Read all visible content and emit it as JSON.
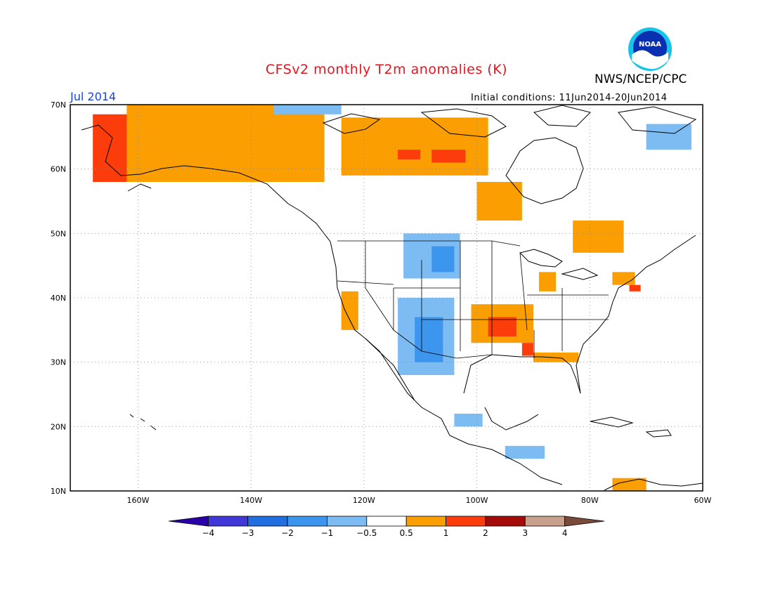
{
  "header": {
    "title": "CFSv2 monthly T2m anomalies (K)",
    "agency": "NWS/NCEP/CPC",
    "month": "Jul 2014",
    "initial_conditions": "Initial conditions: 11Jun2014-20Jun2014",
    "logo_text": "NOAA",
    "logo_icon": "noaa-logo-icon"
  },
  "map": {
    "lon_range": [
      -172,
      -60
    ],
    "lat_range": [
      10,
      70
    ],
    "lon_ticks": [
      "160W",
      "140W",
      "120W",
      "100W",
      "80W",
      "60W"
    ],
    "lon_tick_values": [
      -160,
      -140,
      -120,
      -100,
      -80,
      -60
    ],
    "lat_ticks": [
      "70N",
      "60N",
      "50N",
      "40N",
      "30N",
      "20N",
      "10N"
    ],
    "lat_tick_values": [
      70,
      60,
      50,
      40,
      30,
      20,
      10
    ],
    "grid": "dotted",
    "anomaly_regions": [
      {
        "level": "1",
        "lon": [
          -168,
          -148
        ],
        "lat": [
          58,
          68.5
        ]
      },
      {
        "level": "0.5",
        "lon": [
          -162,
          -127
        ],
        "lat": [
          58,
          70
        ]
      },
      {
        "level": "0.5",
        "lon": [
          -146,
          -134
        ],
        "lat": [
          59,
          70
        ]
      },
      {
        "level": "0.5",
        "lon": [
          -124,
          -98
        ],
        "lat": [
          59,
          68
        ]
      },
      {
        "level": "1",
        "lon": [
          -108,
          -102
        ],
        "lat": [
          61,
          63
        ]
      },
      {
        "level": "1",
        "lon": [
          -114,
          -110
        ],
        "lat": [
          61.5,
          63
        ]
      },
      {
        "level": "0.5",
        "lon": [
          -100,
          -92
        ],
        "lat": [
          52,
          58
        ]
      },
      {
        "level": "0.5",
        "lon": [
          -83,
          -74
        ],
        "lat": [
          47,
          52
        ]
      },
      {
        "level": "-0.5",
        "lon": [
          -113,
          -103
        ],
        "lat": [
          43,
          50
        ]
      },
      {
        "level": "-1",
        "lon": [
          -108,
          -104
        ],
        "lat": [
          44,
          48
        ]
      },
      {
        "level": "-0.5",
        "lon": [
          -114,
          -104
        ],
        "lat": [
          28,
          40
        ]
      },
      {
        "level": "-1",
        "lon": [
          -111,
          -106
        ],
        "lat": [
          30,
          37
        ]
      },
      {
        "level": "0.5",
        "lon": [
          -101,
          -90
        ],
        "lat": [
          33,
          39
        ]
      },
      {
        "level": "1",
        "lon": [
          -98,
          -93
        ],
        "lat": [
          34,
          37
        ]
      },
      {
        "level": "1",
        "lon": [
          -92,
          -90
        ],
        "lat": [
          31,
          33
        ]
      },
      {
        "level": "0.5",
        "lon": [
          -124,
          -121
        ],
        "lat": [
          35,
          41
        ]
      },
      {
        "level": "0.5",
        "lon": [
          -89,
          -86
        ],
        "lat": [
          41,
          44
        ]
      },
      {
        "level": "-0.5",
        "lon": [
          -104,
          -99
        ],
        "lat": [
          20,
          22
        ]
      },
      {
        "level": "-0.5",
        "lon": [
          -95,
          -88
        ],
        "lat": [
          15,
          17
        ]
      },
      {
        "level": "0.5",
        "lon": [
          -76,
          -72
        ],
        "lat": [
          42,
          44
        ]
      },
      {
        "level": "1",
        "lon": [
          -73,
          -71
        ],
        "lat": [
          41,
          42
        ]
      },
      {
        "level": "-0.5",
        "lon": [
          -70,
          -62
        ],
        "lat": [
          63,
          67
        ]
      },
      {
        "level": "-0.5",
        "lon": [
          -136,
          -124
        ],
        "lat": [
          68.5,
          70
        ]
      },
      {
        "level": "0.5",
        "lon": [
          -90,
          -82
        ],
        "lat": [
          30,
          31.5
        ]
      },
      {
        "level": "0.5",
        "lon": [
          -76,
          -70
        ],
        "lat": [
          10,
          12
        ]
      }
    ]
  },
  "colorbar": {
    "colors": [
      "#2a00a8",
      "#4038d6",
      "#1f6fe0",
      "#3d96ee",
      "#7dbcf2",
      "#ffffff",
      "#fa9e02",
      "#fc3c0a",
      "#a50a0a",
      "#c8a08c",
      "#7a4a3a"
    ],
    "labels": [
      "−4",
      "−3",
      "−2",
      "−1",
      "−0.5",
      "0.5",
      "1",
      "2",
      "3",
      "4"
    ],
    "level_colors": {
      "-1": "#3d96ee",
      "-0.5": "#7dbcf2",
      "0.5": "#fa9e02",
      "1": "#fc3c0a"
    }
  }
}
